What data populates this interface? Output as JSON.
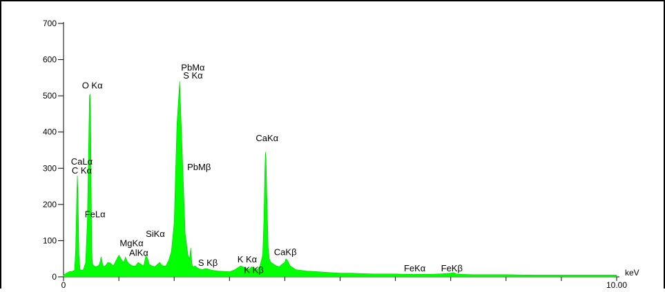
{
  "chart_data": {
    "type": "area",
    "title": "",
    "xlabel": "keV",
    "ylabel": "",
    "xlim": [
      0,
      10
    ],
    "ylim": [
      0,
      700
    ],
    "x_tick_labels": [
      {
        "value": 0,
        "label": "0"
      },
      {
        "value": 10,
        "label": "10.00"
      }
    ],
    "x_minor_ticks": [
      0,
      1,
      2,
      3,
      4,
      5,
      6,
      7,
      8,
      9,
      10
    ],
    "y_ticks": [
      0,
      100,
      200,
      300,
      400,
      500,
      600,
      700
    ],
    "y_tick_labels": [
      "0",
      "100",
      "200",
      "300",
      "400",
      "500",
      "600",
      "700"
    ],
    "grid": false,
    "fill_color": "#00ff00",
    "series": [
      {
        "x": [
          0.0,
          0.05,
          0.1,
          0.15,
          0.2,
          0.22,
          0.24,
          0.25,
          0.26,
          0.28,
          0.3,
          0.33,
          0.36,
          0.4,
          0.43,
          0.45,
          0.47,
          0.48,
          0.49,
          0.5,
          0.51,
          0.52,
          0.53,
          0.55,
          0.58,
          0.62,
          0.65,
          0.68,
          0.7,
          0.72,
          0.75,
          0.78,
          0.8,
          0.85,
          0.9,
          0.95,
          1.0,
          1.04,
          1.08,
          1.1,
          1.12,
          1.16,
          1.2,
          1.25,
          1.3,
          1.35,
          1.4,
          1.45,
          1.49,
          1.52,
          1.55,
          1.6,
          1.65,
          1.7,
          1.74,
          1.76,
          1.8,
          1.85,
          1.9,
          1.95,
          2.0,
          2.05,
          2.1,
          2.15,
          2.2,
          2.25,
          2.28,
          2.3,
          2.31,
          2.32,
          2.33,
          2.35,
          2.38,
          2.42,
          2.46,
          2.5,
          2.55,
          2.6,
          2.65,
          2.7,
          2.8,
          2.9,
          3.0,
          3.1,
          3.2,
          3.3,
          3.35,
          3.4,
          3.45,
          3.5,
          3.55,
          3.6,
          3.62,
          3.64,
          3.65,
          3.66,
          3.68,
          3.7,
          3.72,
          3.75,
          3.8,
          3.85,
          3.9,
          3.95,
          4.0,
          4.02,
          4.05,
          4.1,
          4.15,
          4.2,
          4.3,
          4.4,
          4.5,
          4.6,
          4.8,
          5.0,
          5.2,
          5.4,
          5.6,
          5.8,
          6.0,
          6.2,
          6.4,
          6.6,
          6.8,
          7.0,
          7.05,
          7.1,
          7.2,
          7.4,
          7.6,
          7.8,
          8.0,
          8.5,
          9.0,
          9.5,
          10.0
        ],
        "y": [
          5,
          10,
          14,
          15,
          18,
          80,
          230,
          280,
          240,
          60,
          20,
          18,
          20,
          40,
          150,
          320,
          500,
          505,
          460,
          250,
          80,
          40,
          35,
          30,
          28,
          30,
          35,
          55,
          40,
          28,
          30,
          35,
          40,
          38,
          30,
          45,
          60,
          50,
          40,
          45,
          55,
          40,
          35,
          30,
          30,
          40,
          35,
          30,
          60,
          50,
          35,
          30,
          28,
          35,
          40,
          35,
          30,
          30,
          45,
          70,
          150,
          420,
          540,
          330,
          120,
          60,
          50,
          80,
          60,
          40,
          30,
          28,
          30,
          25,
          22,
          20,
          22,
          22,
          20,
          18,
          16,
          15,
          14,
          20,
          30,
          25,
          20,
          28,
          25,
          20,
          30,
          60,
          150,
          300,
          345,
          330,
          200,
          80,
          50,
          40,
          35,
          30,
          28,
          35,
          40,
          50,
          45,
          30,
          25,
          20,
          18,
          16,
          15,
          14,
          12,
          10,
          10,
          9,
          8,
          8,
          8,
          7,
          7,
          7,
          8,
          10,
          12,
          8,
          7,
          6,
          6,
          6,
          6,
          5,
          5,
          5,
          5
        ]
      }
    ],
    "annotations": [
      {
        "text": "O Kα",
        "x": 0.52,
        "y": 520
      },
      {
        "text": "CaLα",
        "x": 0.33,
        "y": 310
      },
      {
        "text": "C Kα",
        "x": 0.33,
        "y": 285
      },
      {
        "text": "FeLα",
        "x": 0.57,
        "y": 165
      },
      {
        "text": "MgKα",
        "x": 1.23,
        "y": 85
      },
      {
        "text": "AlKα",
        "x": 1.36,
        "y": 58
      },
      {
        "text": "SiKα",
        "x": 1.66,
        "y": 110
      },
      {
        "text": "PbMα",
        "x": 2.34,
        "y": 570
      },
      {
        "text": "S Kα",
        "x": 2.34,
        "y": 548
      },
      {
        "text": "PbMβ",
        "x": 2.45,
        "y": 295
      },
      {
        "text": "S Kβ",
        "x": 2.61,
        "y": 30
      },
      {
        "text": "K Kα",
        "x": 3.32,
        "y": 40
      },
      {
        "text": "K Kβ",
        "x": 3.44,
        "y": 10
      },
      {
        "text": "CaKα",
        "x": 3.68,
        "y": 375
      },
      {
        "text": "CaKβ",
        "x": 4.01,
        "y": 60
      },
      {
        "text": "FeKα",
        "x": 6.35,
        "y": 15
      },
      {
        "text": "FeKβ",
        "x": 7.02,
        "y": 15
      }
    ]
  }
}
